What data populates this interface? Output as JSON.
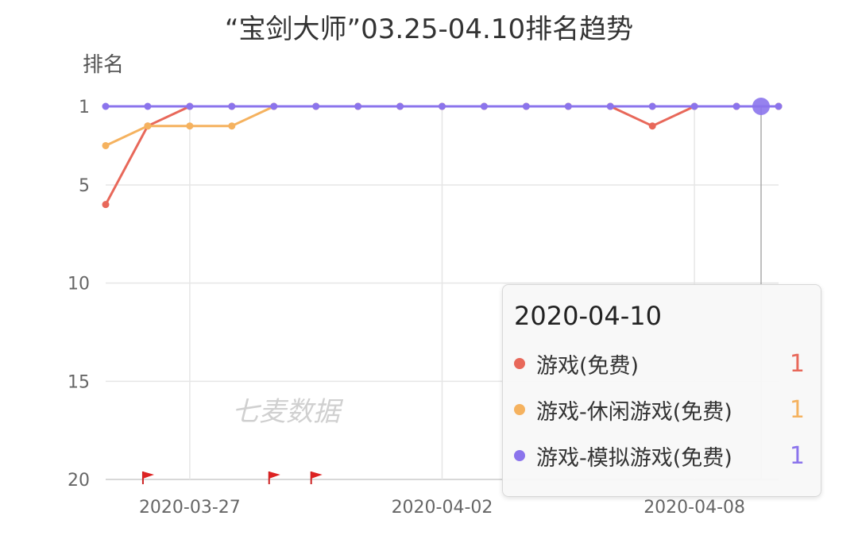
{
  "chart_data": {
    "type": "line",
    "title": "“宝剑大师”03.25-04.10排名趋势",
    "ylabel": "排名",
    "y_inverted": true,
    "ylim": [
      1,
      20
    ],
    "yticks": [
      "1",
      "5",
      "10",
      "15",
      "20"
    ],
    "x": [
      "2020-03-25",
      "2020-03-26",
      "2020-03-27",
      "2020-03-28",
      "2020-03-29",
      "2020-03-30",
      "2020-03-31",
      "2020-04-01",
      "2020-04-02",
      "2020-04-03",
      "2020-04-04",
      "2020-04-05",
      "2020-04-06",
      "2020-04-07",
      "2020-04-08",
      "2020-04-09",
      "2020-04-10"
    ],
    "xtick_labels": [
      "2020-03-27",
      "2020-04-02",
      "2020-04-08"
    ],
    "grid": true,
    "series": [
      {
        "name": "游戏(免费)",
        "color": "#e8685a",
        "values": [
          6,
          2,
          null,
          null,
          null,
          null,
          null,
          null,
          null,
          null,
          null,
          null,
          1,
          2,
          1,
          null,
          1
        ]
      },
      {
        "name": "游戏-休闲游戏(免费)",
        "color": "#f5b25f",
        "values": [
          3,
          2,
          2,
          2,
          1,
          null,
          null,
          null,
          null,
          null,
          null,
          null,
          null,
          null,
          null,
          null,
          1
        ]
      },
      {
        "name": "游戏-模拟游戏(免费)",
        "color": "#8b74ec",
        "values": [
          1,
          1,
          1,
          1,
          1,
          1,
          1,
          1,
          1,
          1,
          1,
          1,
          1,
          1,
          1,
          1,
          1
        ]
      }
    ],
    "event_flags": [
      "2020-03-26",
      "2020-03-29",
      "2020-03-30"
    ],
    "watermark": "七麦数据",
    "tooltip": {
      "date": "2020-04-10",
      "items": [
        {
          "name": "游戏(免费)",
          "value": "1",
          "color": "#e8685a"
        },
        {
          "name": "游戏-休闲游戏(免费)",
          "value": "1",
          "color": "#f5b25f"
        },
        {
          "name": "游戏-模拟游戏(免费)",
          "value": "1",
          "color": "#8b74ec"
        }
      ]
    }
  }
}
